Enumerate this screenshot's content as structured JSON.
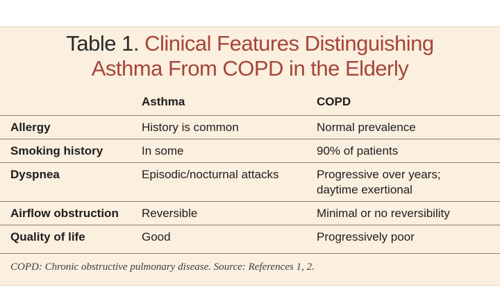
{
  "table": {
    "title_prefix": "Table 1.",
    "title_line1": "Clinical Features Distinguishing",
    "title_line2": "Asthma From COPD in the Elderly",
    "columns": [
      "",
      "Asthma",
      "COPD"
    ],
    "rows": [
      {
        "label": "Allergy",
        "asthma": "History is common",
        "copd": "Normal prevalence"
      },
      {
        "label": "Smoking history",
        "asthma": "In some",
        "copd": "90% of patients"
      },
      {
        "label": "Dyspnea",
        "asthma": "Episodic/nocturnal attacks",
        "copd_line1": "Progressive over years;",
        "copd_line2": "daytime exertional"
      },
      {
        "label": "Airflow obstruction",
        "asthma": "Reversible",
        "copd": "Minimal or no reversibility"
      },
      {
        "label": "Quality of life",
        "asthma": "Good",
        "copd": "Progressively poor"
      }
    ],
    "footnote": "COPD: Chronic obstructive pulmonary disease. Source: References 1, 2."
  },
  "colors": {
    "background": "#fbefdf",
    "title_accent": "#a4463a",
    "rule": "#8c7b6b"
  }
}
